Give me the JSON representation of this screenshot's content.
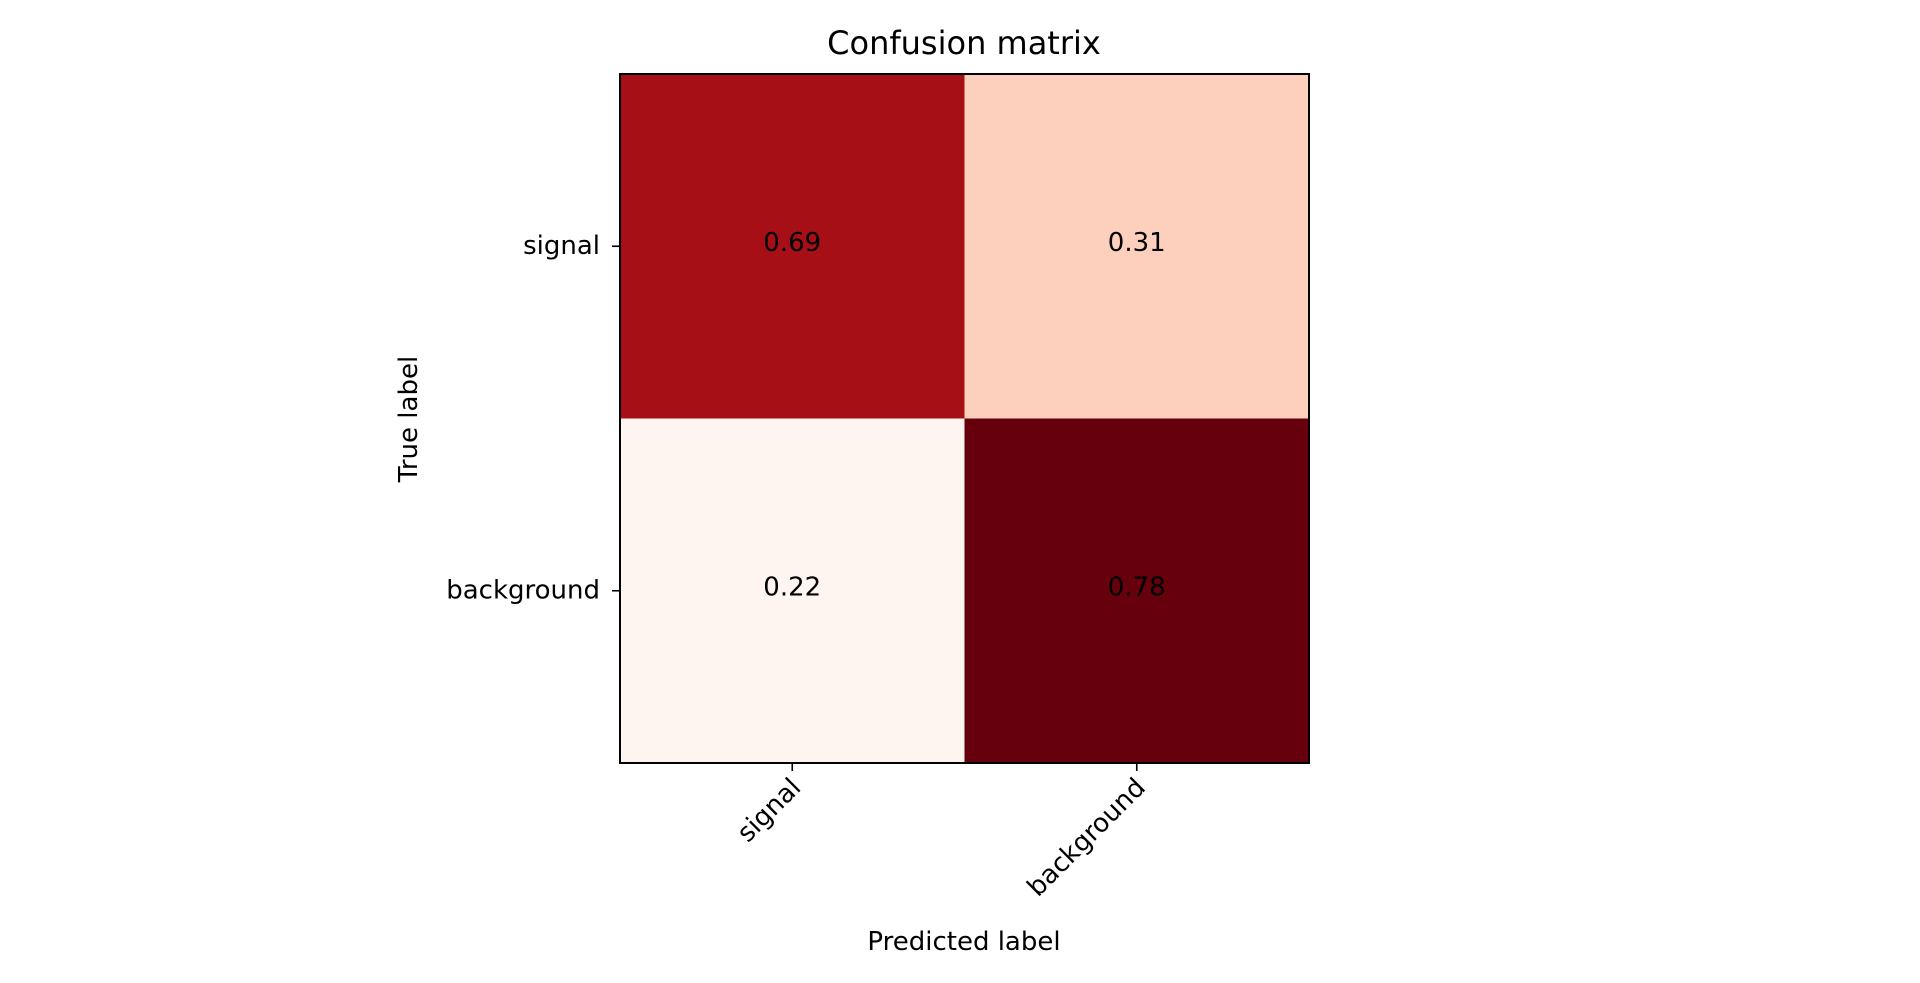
{
  "chart_data": {
    "type": "heatmap",
    "title": "Confusion matrix",
    "xlabel": "Predicted label",
    "ylabel": "True label",
    "x_categories": [
      "signal",
      "background"
    ],
    "y_categories": [
      "signal",
      "background"
    ],
    "values": [
      [
        0.69,
        0.31
      ],
      [
        0.22,
        0.78
      ]
    ],
    "colormap": "Reds",
    "colors": {
      "low": "#fff5f0",
      "mid_low": "#fcbba1",
      "mid": "#fb6a4a",
      "mid_high": "#cb181d",
      "high": "#67000d"
    },
    "grid": false,
    "legend": "none"
  }
}
